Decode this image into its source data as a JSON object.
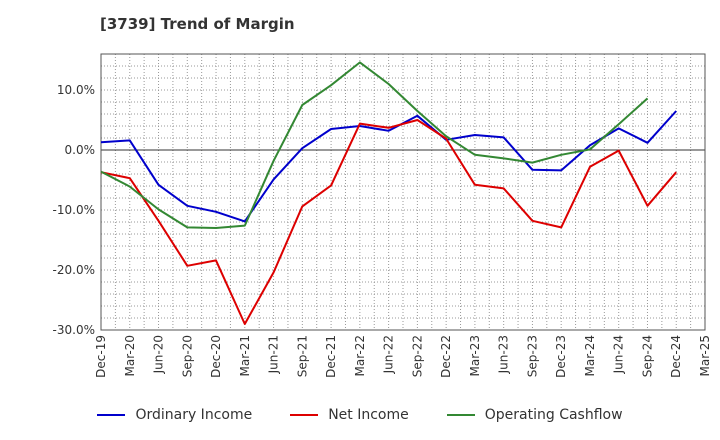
{
  "title": "[3739]  Trend of Margin",
  "chart_data": {
    "type": "line",
    "title": "[3739]  Trend of Margin",
    "categories": [
      "Dec-19",
      "Mar-20",
      "Jun-20",
      "Sep-20",
      "Dec-20",
      "Mar-21",
      "Jun-21",
      "Sep-21",
      "Dec-21",
      "Mar-22",
      "Jun-22",
      "Sep-22",
      "Dec-22",
      "Mar-23",
      "Jun-23",
      "Sep-23",
      "Dec-23",
      "Mar-24",
      "Jun-24",
      "Sep-24",
      "Dec-24",
      "Mar-25"
    ],
    "y_tick_labels": [
      "10.0%",
      "0.0%",
      "-10.0%",
      "-20.0%",
      "-30.0%"
    ],
    "y_ticks": [
      10,
      0,
      -10,
      -20,
      -30
    ],
    "ylim": [
      -30,
      16
    ],
    "y_unit": "%",
    "grid": true,
    "legend_position": "bottom",
    "series": [
      {
        "name": "Ordinary Income",
        "color": "#0000cc",
        "values": [
          1.3,
          1.6,
          -5.8,
          -9.3,
          -10.3,
          -11.9,
          -4.9,
          0.3,
          3.5,
          4.0,
          3.2,
          5.7,
          1.7,
          2.5,
          2.1,
          -3.3,
          -3.4,
          0.8,
          3.6,
          1.2,
          6.5,
          null
        ]
      },
      {
        "name": "Net Income",
        "color": "#dd0000",
        "values": [
          -3.7,
          -4.7,
          -11.8,
          -19.3,
          -18.4,
          -29.0,
          -20.4,
          -9.4,
          -5.9,
          4.4,
          3.7,
          5.0,
          1.9,
          -5.8,
          -6.4,
          -11.8,
          -12.9,
          -2.8,
          -0.1,
          -9.3,
          -3.7,
          null
        ]
      },
      {
        "name": "Operating Cashflow",
        "color": "#338833",
        "values": [
          -3.6,
          -6.1,
          -9.9,
          -12.9,
          -13.0,
          -12.6,
          -1.8,
          7.5,
          10.8,
          14.6,
          11.0,
          6.5,
          2.3,
          -0.8,
          -1.4,
          -2.1,
          -0.8,
          0.1,
          4.3,
          8.6,
          null,
          null
        ]
      }
    ]
  },
  "legend": {
    "items": [
      {
        "label": "Ordinary Income",
        "color": "#0000cc"
      },
      {
        "label": "Net Income",
        "color": "#dd0000"
      },
      {
        "label": "Operating Cashflow",
        "color": "#338833"
      }
    ]
  }
}
